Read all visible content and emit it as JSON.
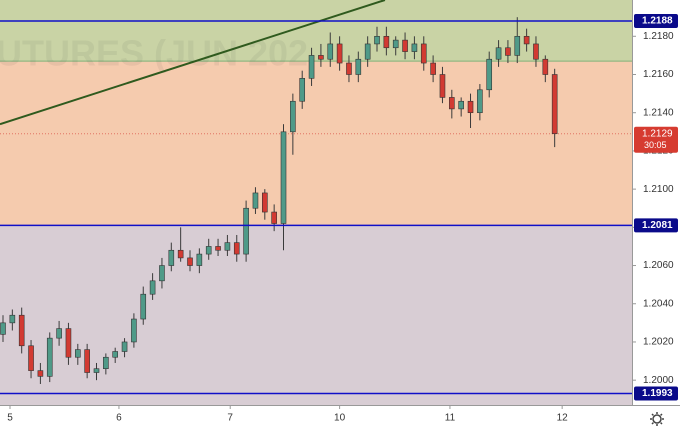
{
  "chart_data": {
    "type": "candlestick",
    "watermark": "UTURES (JUN 202",
    "xlim": [
      -0.32,
      67.27
    ],
    "xticks": [
      {
        "value": 0.75,
        "label": "5"
      },
      {
        "value": 12.4,
        "label": "6"
      },
      {
        "value": 24.3,
        "label": "7"
      },
      {
        "value": 36.0,
        "label": "10"
      },
      {
        "value": 47.8,
        "label": "11"
      },
      {
        "value": 59.8,
        "label": "12"
      }
    ],
    "ylim": [
      1.1987,
      1.2199
    ],
    "yticks": [
      {
        "value": 1.2,
        "label": "1.2000"
      },
      {
        "value": 1.202,
        "label": "1.2020"
      },
      {
        "value": 1.204,
        "label": "1.2040"
      },
      {
        "value": 1.206,
        "label": "1.2060"
      },
      {
        "value": 1.208,
        "label": "1.2080"
      },
      {
        "value": 1.21,
        "label": "1.2100"
      },
      {
        "value": 1.212,
        "label": "1.2120"
      },
      {
        "value": 1.214,
        "label": "1.2140"
      },
      {
        "value": 1.216,
        "label": "1.2160"
      },
      {
        "value": 1.218,
        "label": "1.2180"
      }
    ],
    "zones": [
      {
        "from": 1.2167,
        "to": 1.2199,
        "color": "#c9d3a5"
      },
      {
        "from": 1.2081,
        "to": 1.2167,
        "color": "#f5cbae"
      },
      {
        "from": 1.1987,
        "to": 1.2081,
        "color": "#d8cdd4"
      }
    ],
    "levels": [
      {
        "value": 1.2188,
        "label": "1.2188"
      },
      {
        "value": 1.2081,
        "label": "1.2081"
      },
      {
        "value": 1.1993,
        "label": "1.1993"
      }
    ],
    "level_color": "#1010c8",
    "zone_edge": 1.2167,
    "trend_line": {
      "x": [
        -0.32,
        40.85
      ],
      "y": [
        1.2134,
        1.2199
      ],
      "color": "#2f5a1e"
    },
    "last_price": {
      "value": 1.2129,
      "label": "1.2129",
      "timer": "30:05",
      "color": "#d63b30"
    },
    "up_color": "#4f9a88",
    "down_color": "#d23a32",
    "open": [
      1.2024,
      1.203,
      1.2034,
      1.2018,
      1.2005,
      1.2002,
      1.2022,
      1.2027,
      1.2012,
      1.2016,
      1.2004,
      1.2006,
      1.2012,
      1.2015,
      1.202,
      1.2032,
      1.2045,
      1.2052,
      1.206,
      1.2068,
      1.2064,
      1.206,
      1.2066,
      1.207,
      1.2068,
      1.2072,
      1.2066,
      1.209,
      1.2098,
      1.2088,
      1.2082,
      1.213,
      1.2146,
      1.2158,
      1.217,
      1.2168,
      1.2176,
      1.2166,
      1.216,
      1.2168,
      1.2176,
      1.218,
      1.2174,
      1.2178,
      1.2172,
      1.2176,
      1.2166,
      1.216,
      1.2148,
      1.2142,
      1.2146,
      1.214,
      1.2152,
      1.2168,
      1.2174,
      1.217,
      1.218,
      1.2176,
      1.2168,
      1.216
    ],
    "high": [
      1.2034,
      1.2037,
      1.2038,
      1.2021,
      1.2009,
      1.2025,
      1.2031,
      1.203,
      1.2019,
      1.2019,
      1.2009,
      1.2014,
      1.2017,
      1.2022,
      1.2035,
      1.2049,
      1.2056,
      1.2064,
      1.2072,
      1.208,
      1.2068,
      1.2069,
      1.2074,
      1.2074,
      1.2076,
      1.2076,
      1.2094,
      1.2101,
      1.21,
      1.2092,
      1.2134,
      1.215,
      1.2162,
      1.2174,
      1.2176,
      1.2182,
      1.218,
      1.217,
      1.2172,
      1.218,
      1.2185,
      1.2185,
      1.218,
      1.2182,
      1.218,
      1.218,
      1.217,
      1.2164,
      1.2152,
      1.2148,
      1.215,
      1.2155,
      1.2172,
      1.2178,
      1.2178,
      1.219,
      1.2184,
      1.218,
      1.217,
      1.2163
    ],
    "low": [
      1.202,
      1.2026,
      1.2014,
      1.2001,
      1.1998,
      1.1999,
      1.2018,
      1.2008,
      1.2008,
      1.2001,
      1.2,
      1.2003,
      1.2009,
      1.2012,
      1.2017,
      1.2029,
      1.2042,
      1.2048,
      1.2057,
      1.2062,
      1.2057,
      1.2056,
      1.2063,
      1.2065,
      1.2065,
      1.2062,
      1.2062,
      1.2087,
      1.2084,
      1.2078,
      1.2068,
      1.2118,
      1.2142,
      1.2154,
      1.2164,
      1.2164,
      1.2162,
      1.2156,
      1.2156,
      1.2164,
      1.2172,
      1.217,
      1.217,
      1.2168,
      1.2168,
      1.2162,
      1.2156,
      1.2145,
      1.2137,
      1.2138,
      1.2132,
      1.2136,
      1.2148,
      1.2164,
      1.2166,
      1.2166,
      1.2172,
      1.2164,
      1.2156,
      1.2122
    ],
    "close": [
      1.203,
      1.2034,
      1.2018,
      1.2005,
      1.2002,
      1.2022,
      1.2027,
      1.2012,
      1.2016,
      1.2004,
      1.2006,
      1.2012,
      1.2015,
      1.202,
      1.2032,
      1.2045,
      1.2052,
      1.206,
      1.2068,
      1.2064,
      1.206,
      1.2066,
      1.207,
      1.2068,
      1.2072,
      1.2066,
      1.209,
      1.2098,
      1.2088,
      1.2082,
      1.213,
      1.2146,
      1.2158,
      1.217,
      1.2168,
      1.2176,
      1.2166,
      1.216,
      1.2168,
      1.2176,
      1.218,
      1.2174,
      1.2178,
      1.2172,
      1.2176,
      1.2166,
      1.216,
      1.2148,
      1.2142,
      1.2146,
      1.214,
      1.2152,
      1.2168,
      1.2174,
      1.217,
      1.218,
      1.2176,
      1.2168,
      1.216,
      1.2129
    ]
  }
}
